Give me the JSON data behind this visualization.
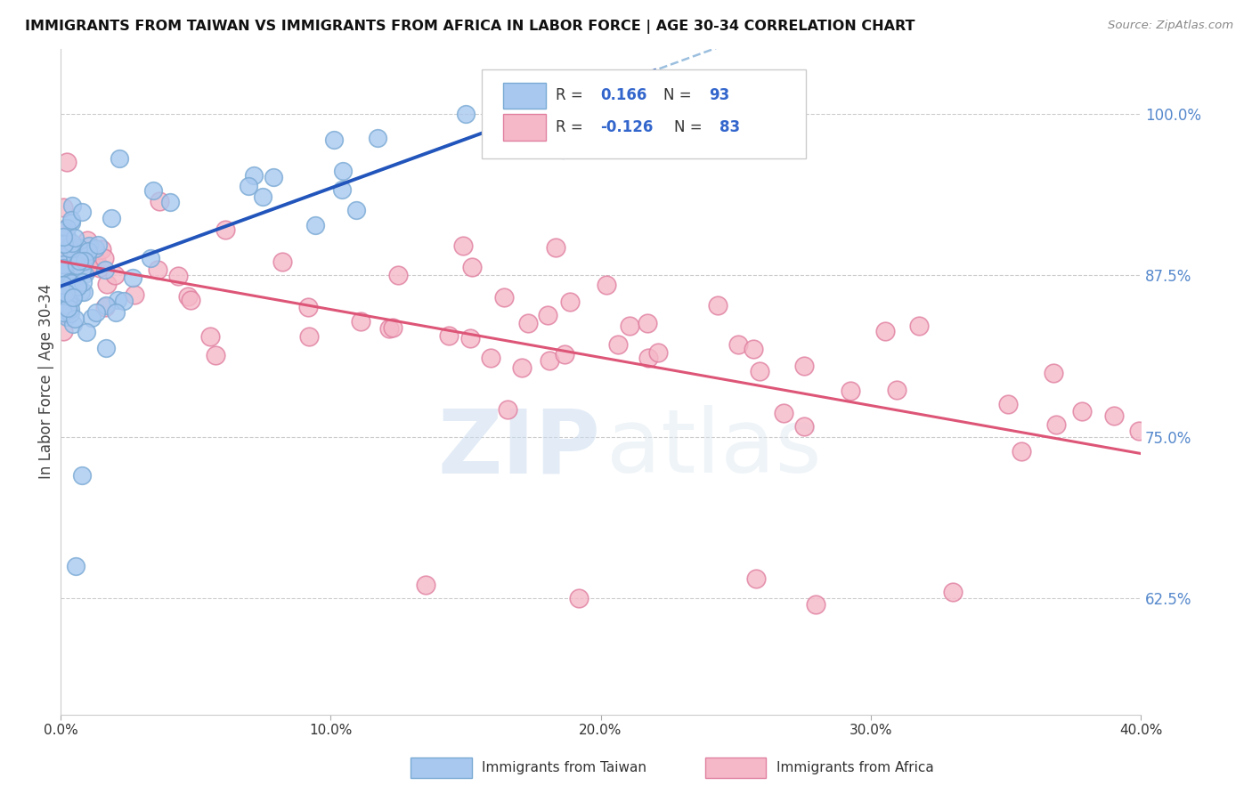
{
  "title": "IMMIGRANTS FROM TAIWAN VS IMMIGRANTS FROM AFRICA IN LABOR FORCE | AGE 30-34 CORRELATION CHART",
  "source": "Source: ZipAtlas.com",
  "ylabel": "In Labor Force | Age 30-34",
  "xlim": [
    0.0,
    0.4
  ],
  "ylim": [
    0.535,
    1.05
  ],
  "xtick_labels": [
    "0.0%",
    "10.0%",
    "20.0%",
    "30.0%",
    "40.0%"
  ],
  "xtick_vals": [
    0.0,
    0.1,
    0.2,
    0.3,
    0.4
  ],
  "ytick_labels_right": [
    "62.5%",
    "75.0%",
    "87.5%",
    "100.0%"
  ],
  "ytick_vals_right": [
    0.625,
    0.75,
    0.875,
    1.0
  ],
  "taiwan_color": "#a8c8f0",
  "taiwan_edge": "#7aaad4",
  "africa_color": "#f5b8c8",
  "africa_edge": "#e080a0",
  "taiwan_line_color": "#2255bb",
  "taiwan_dash_color": "#7aaad4",
  "africa_line_color": "#dd5577",
  "grid_color": "#cccccc",
  "background_color": "#ffffff",
  "legend_R_color": "#3366cc",
  "legend_N_color": "#3366cc",
  "watermark_color": "#d8e4f0",
  "right_tick_color": "#5588cc"
}
